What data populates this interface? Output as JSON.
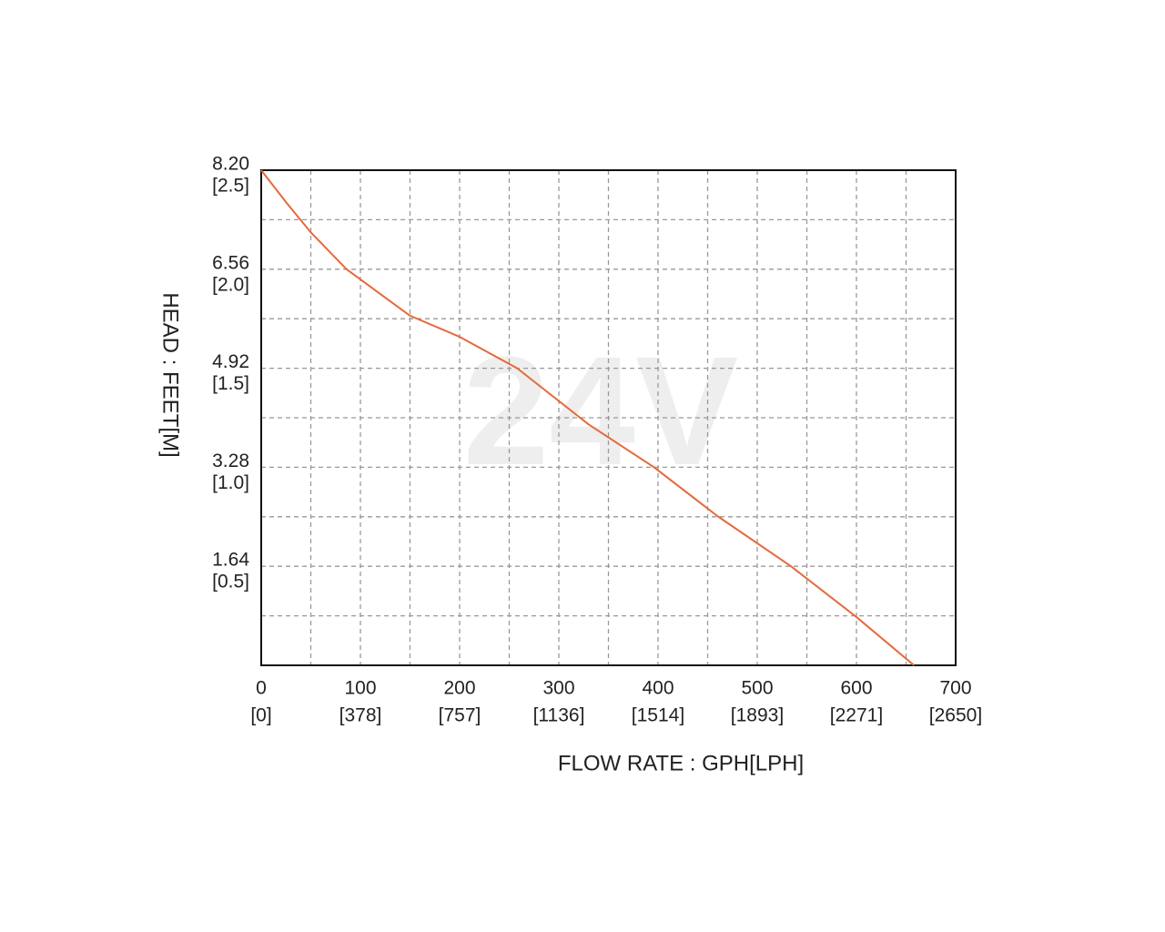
{
  "chart_data": {
    "type": "line",
    "watermark": "24V",
    "xlabel": "FLOW RATE : GPH[LPH]",
    "ylabel": "HEAD : FEET[M]",
    "x": [
      0,
      25,
      50,
      86,
      150,
      200,
      258,
      330,
      396,
      460,
      534,
      600,
      658
    ],
    "series": [
      {
        "name": "24V",
        "color": "#e8683a",
        "values": [
          8.2,
          7.67,
          7.17,
          6.56,
          5.79,
          5.44,
          4.92,
          3.99,
          3.28,
          2.47,
          1.64,
          0.8,
          0
        ]
      }
    ],
    "xlim": [
      0,
      700
    ],
    "ylim": [
      0,
      8.2
    ],
    "xticks": [
      {
        "value": 0,
        "label": "0",
        "metric": "[0]"
      },
      {
        "value": 100,
        "label": "100",
        "metric": "[378]"
      },
      {
        "value": 200,
        "label": "200",
        "metric": "[757]"
      },
      {
        "value": 300,
        "label": "300",
        "metric": "[1136]"
      },
      {
        "value": 400,
        "label": "400",
        "metric": "[1514]"
      },
      {
        "value": 500,
        "label": "500",
        "metric": "[1893]"
      },
      {
        "value": 600,
        "label": "600",
        "metric": "[2271]"
      },
      {
        "value": 700,
        "label": "700",
        "metric": "[2650]"
      }
    ],
    "yticks": [
      {
        "value": 8.2,
        "label": "8.20",
        "metric": "[2.5]"
      },
      {
        "value": 6.56,
        "label": "6.56",
        "metric": "[2.0]"
      },
      {
        "value": 4.92,
        "label": "4.92",
        "metric": "[1.5]"
      },
      {
        "value": 3.28,
        "label": "3.28",
        "metric": "[1.0]"
      },
      {
        "value": 1.64,
        "label": "1.64",
        "metric": "[0.5]"
      }
    ],
    "xgrid": [
      50,
      100,
      150,
      200,
      250,
      300,
      350,
      400,
      450,
      500,
      550,
      600,
      650
    ],
    "ygrid": [
      0.82,
      1.64,
      2.46,
      3.28,
      4.1,
      4.92,
      5.74,
      6.56,
      7.38
    ],
    "grid": true
  }
}
